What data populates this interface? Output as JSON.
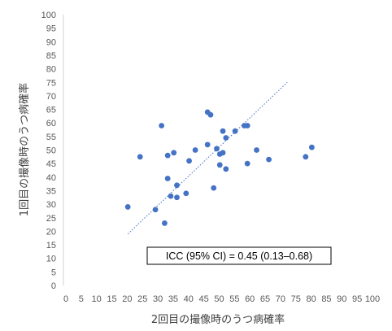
{
  "chart_data": {
    "type": "scatter",
    "xlabel": "2回目の撮像時のうつ病確率",
    "ylabel": "1回目の撮像時のうつ病確率",
    "xlim": [
      0,
      100
    ],
    "ylim": [
      0,
      100
    ],
    "x_ticks": [
      "0",
      "5",
      "10",
      "15",
      "20",
      "25",
      "30",
      "35",
      "40",
      "45",
      "50",
      "55",
      "60",
      "65",
      "70",
      "75",
      "80",
      "85",
      "90",
      "95",
      "100"
    ],
    "y_ticks": [
      "0",
      "5",
      "10",
      "15",
      "20",
      "25",
      "30",
      "35",
      "40",
      "45",
      "50",
      "55",
      "60",
      "65",
      "70",
      "75",
      "80",
      "85",
      "90",
      "95",
      "100"
    ],
    "grid": false,
    "marker_color": "#4472C4",
    "trendline": {
      "style": "dotted",
      "from": [
        21,
        19
      ],
      "to": [
        73,
        75
      ]
    },
    "annotation": "ICC (95% CI) = 0.45 (0.13–0.68)",
    "points": [
      {
        "x": 21,
        "y": 29
      },
      {
        "x": 25,
        "y": 47.5
      },
      {
        "x": 30,
        "y": 28
      },
      {
        "x": 32,
        "y": 59
      },
      {
        "x": 33,
        "y": 23
      },
      {
        "x": 34,
        "y": 39.5
      },
      {
        "x": 34,
        "y": 48
      },
      {
        "x": 35,
        "y": 33
      },
      {
        "x": 36,
        "y": 49
      },
      {
        "x": 37,
        "y": 37
      },
      {
        "x": 37,
        "y": 32.5
      },
      {
        "x": 40,
        "y": 34
      },
      {
        "x": 41,
        "y": 46
      },
      {
        "x": 43,
        "y": 50
      },
      {
        "x": 47,
        "y": 52
      },
      {
        "x": 47,
        "y": 64
      },
      {
        "x": 48,
        "y": 63
      },
      {
        "x": 49,
        "y": 36
      },
      {
        "x": 50,
        "y": 50.5
      },
      {
        "x": 51,
        "y": 44.5
      },
      {
        "x": 51,
        "y": 48.5
      },
      {
        "x": 52,
        "y": 49
      },
      {
        "x": 52,
        "y": 57
      },
      {
        "x": 53,
        "y": 54.5
      },
      {
        "x": 53,
        "y": 43
      },
      {
        "x": 56,
        "y": 57
      },
      {
        "x": 59,
        "y": 59
      },
      {
        "x": 60,
        "y": 45
      },
      {
        "x": 60,
        "y": 59
      },
      {
        "x": 63,
        "y": 50
      },
      {
        "x": 67,
        "y": 46.5
      },
      {
        "x": 79,
        "y": 47.5
      },
      {
        "x": 81,
        "y": 51
      }
    ]
  }
}
